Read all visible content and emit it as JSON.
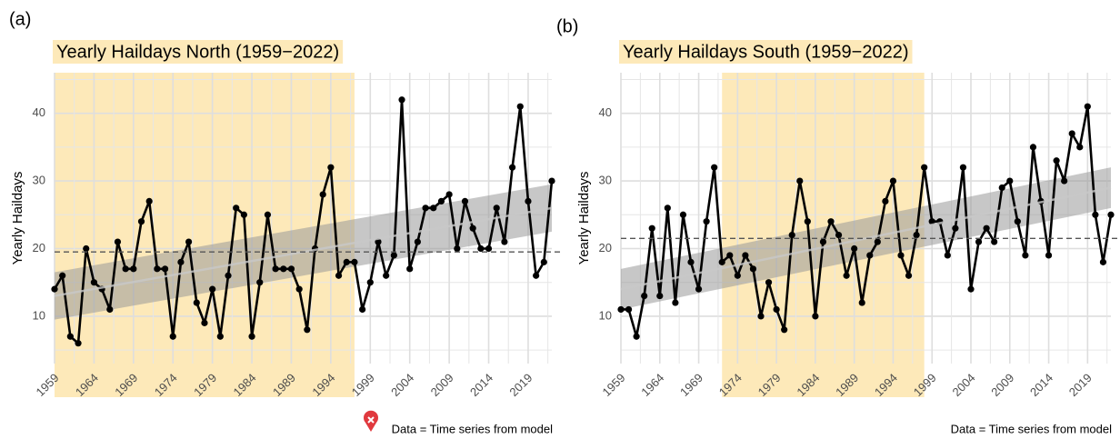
{
  "chart_data": [
    {
      "type": "line",
      "panel_label": "(a)",
      "title": "Yearly Haildays North (1959−2022)",
      "y_label": "Yearly Haildays",
      "caption": "Data = Time series from model",
      "x": [
        1959,
        1960,
        1961,
        1962,
        1963,
        1964,
        1965,
        1966,
        1967,
        1968,
        1969,
        1970,
        1971,
        1972,
        1973,
        1974,
        1975,
        1976,
        1977,
        1978,
        1979,
        1980,
        1981,
        1982,
        1983,
        1984,
        1985,
        1986,
        1987,
        1988,
        1989,
        1990,
        1991,
        1992,
        1993,
        1994,
        1995,
        1996,
        1997,
        1998,
        1999,
        2000,
        2001,
        2002,
        2003,
        2004,
        2005,
        2006,
        2007,
        2008,
        2009,
        2010,
        2011,
        2012,
        2013,
        2014,
        2015,
        2016,
        2017,
        2018,
        2019,
        2020,
        2021,
        2022
      ],
      "values": [
        14,
        16,
        7,
        6,
        20,
        15,
        14,
        11,
        21,
        17,
        17,
        24,
        27,
        17,
        17,
        7,
        18,
        21,
        12,
        9,
        14,
        7,
        16,
        26,
        25,
        7,
        15,
        25,
        17,
        17,
        17,
        14,
        8,
        20,
        28,
        32,
        16,
        18,
        18,
        11,
        15,
        21,
        16,
        19,
        42,
        17,
        21,
        26,
        26,
        27,
        28,
        20,
        27,
        23,
        20,
        20,
        26,
        21,
        32,
        41,
        27,
        16,
        18,
        30
      ],
      "color": "#000000",
      "mean": 19.5,
      "trend": {
        "x": [
          1959,
          2022
        ],
        "values": [
          13,
          26
        ],
        "lower": [
          9.5,
          22.5
        ],
        "upper": [
          16.5,
          29.5
        ]
      },
      "highlight": [
        1959,
        1997
      ],
      "xlim": [
        1959,
        2022
      ],
      "ylim": [
        3,
        46
      ],
      "xticks": [
        1959,
        1964,
        1969,
        1974,
        1979,
        1984,
        1989,
        1994,
        1999,
        2004,
        2009,
        2014,
        2019
      ],
      "yticks": [
        10,
        20,
        30,
        40
      ],
      "grid": true
    },
    {
      "type": "line",
      "panel_label": "(b)",
      "title": "Yearly Haildays South (1959−2022)",
      "y_label": "Yearly Haildays",
      "caption": "Data = Time series from model",
      "x": [
        1959,
        1960,
        1961,
        1962,
        1963,
        1964,
        1965,
        1966,
        1967,
        1968,
        1969,
        1970,
        1971,
        1972,
        1973,
        1974,
        1975,
        1976,
        1977,
        1978,
        1979,
        1980,
        1981,
        1982,
        1983,
        1984,
        1985,
        1986,
        1987,
        1988,
        1989,
        1990,
        1991,
        1992,
        1993,
        1994,
        1995,
        1996,
        1997,
        1998,
        1999,
        2000,
        2001,
        2002,
        2003,
        2004,
        2005,
        2006,
        2007,
        2008,
        2009,
        2010,
        2011,
        2012,
        2013,
        2014,
        2015,
        2016,
        2017,
        2018,
        2019,
        2020,
        2021,
        2022
      ],
      "values": [
        11,
        11,
        7,
        13,
        23,
        13,
        26,
        12,
        25,
        18,
        14,
        24,
        32,
        18,
        19,
        16,
        19,
        17,
        10,
        15,
        11,
        8,
        22,
        30,
        24,
        10,
        21,
        24,
        22,
        16,
        20,
        12,
        19,
        21,
        27,
        30,
        19,
        16,
        22,
        32,
        24,
        24,
        19,
        23,
        32,
        14,
        21,
        23,
        21,
        29,
        30,
        24,
        19,
        35,
        27,
        19,
        33,
        30,
        37,
        35,
        41,
        25,
        18,
        25
      ],
      "color": "#000000",
      "mean": 21.5,
      "trend": {
        "x": [
          1959,
          2022
        ],
        "values": [
          14,
          29
        ],
        "lower": [
          11,
          26
        ],
        "upper": [
          17,
          32
        ]
      },
      "highlight": [
        1972,
        1998
      ],
      "xlim": [
        1959,
        2022
      ],
      "ylim": [
        3,
        46
      ],
      "xticks": [
        1959,
        1964,
        1969,
        1974,
        1979,
        1984,
        1989,
        1994,
        1999,
        2004,
        2009,
        2014,
        2019
      ],
      "yticks": [
        10,
        20,
        30,
        40
      ],
      "grid": true
    }
  ]
}
